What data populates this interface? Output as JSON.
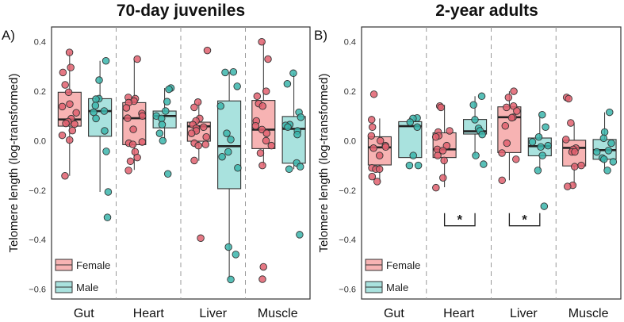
{
  "chart_data": [
    {
      "type": "box",
      "panel_label": "A)",
      "title": "70-day juveniles",
      "ylabel": "Telomere length (log-transformed)",
      "ylim": [
        -0.64,
        0.46
      ],
      "yticks": [
        "0.4",
        "0.2",
        "0.0",
        "−0.2",
        "−0.4",
        "−0.6"
      ],
      "ytick_values": [
        0.4,
        0.2,
        0.0,
        -0.2,
        -0.4,
        -0.6
      ],
      "categories": [
        "Gut",
        "Heart",
        "Liver",
        "Muscle"
      ],
      "legend": {
        "position": "bottom-left",
        "entries": [
          "Female",
          "Male"
        ]
      },
      "series": [
        {
          "name": "Female",
          "fill": "#f7b3b3",
          "point": "#e0606e",
          "boxes": [
            {
              "q1": 0.059,
              "median": 0.086,
              "q3": 0.196,
              "lower": -0.142,
              "upper": 0.357,
              "points": [
                0.357,
                0.296,
                0.276,
                0.226,
                0.196,
                0.148,
                0.138,
                0.113,
                0.089,
                0.077,
                0.07,
                0.067,
                0.041,
                0.022,
                0.003,
                -0.142
              ]
            },
            {
              "q1": -0.016,
              "median": 0.091,
              "q3": 0.154,
              "lower": -0.118,
              "upper": 0.33,
              "points": [
                0.33,
                0.175,
                0.17,
                0.16,
                0.154,
                0.133,
                0.11,
                0.1,
                0.091,
                0.046,
                -0.005,
                -0.01,
                -0.015,
                -0.045,
                -0.068,
                -0.083,
                -0.12
              ]
            },
            {
              "q1": -0.002,
              "median": 0.058,
              "q3": 0.075,
              "lower": -0.081,
              "upper": 0.156,
              "points": [
                0.365,
                0.156,
                0.135,
                0.09,
                0.08,
                0.065,
                0.055,
                0.05,
                0.04,
                0.03,
                0.015,
                -0.01,
                -0.015,
                -0.02,
                -0.08,
                -0.394
              ]
            },
            {
              "q1": -0.032,
              "median": 0.045,
              "q3": 0.163,
              "lower": -0.1,
              "upper": 0.4,
              "points": [
                0.4,
                0.33,
                0.2,
                0.18,
                0.15,
                0.14,
                0.08,
                0.06,
                0.045,
                0.03,
                0.0,
                -0.02,
                -0.05,
                -0.1,
                -0.51,
                -0.56
              ]
            }
          ]
        },
        {
          "name": "Male",
          "fill": "#a9e2de",
          "point": "#3bb5ac",
          "boxes": [
            {
              "q1": 0.018,
              "median": 0.12,
              "q3": 0.17,
              "lower": -0.207,
              "upper": 0.323,
              "points": [
                0.323,
                0.245,
                0.17,
                0.168,
                0.142,
                0.12,
                0.115,
                0.09,
                0.04,
                -0.043,
                -0.207,
                -0.31
              ]
            },
            {
              "q1": 0.052,
              "median": 0.1,
              "q3": 0.12,
              "lower": 0.0,
              "upper": 0.213,
              "points": [
                0.213,
                0.208,
                0.158,
                0.12,
                0.1,
                0.09,
                0.065,
                0.03,
                0.0,
                -0.134
              ]
            },
            {
              "q1": -0.194,
              "median": -0.022,
              "q3": 0.161,
              "lower": -0.561,
              "upper": 0.278,
              "points": [
                0.278,
                0.276,
                0.22,
                0.14,
                0.03,
                0.005,
                -0.045,
                -0.065,
                -0.11,
                -0.43,
                -0.46,
                -0.561
              ]
            },
            {
              "q1": -0.091,
              "median": 0.048,
              "q3": 0.098,
              "lower": -0.115,
              "upper": 0.273,
              "points": [
                0.273,
                0.23,
                0.115,
                0.095,
                0.065,
                0.062,
                0.055,
                0.04,
                0.025,
                -0.09,
                -0.105,
                -0.115,
                -0.38
              ]
            }
          ]
        }
      ],
      "significance": []
    },
    {
      "type": "box",
      "panel_label": "B)",
      "title": "2-year adults",
      "ylabel": "Telomere length (log-transformed)",
      "ylim": [
        -0.64,
        0.46
      ],
      "yticks": [
        "0.4",
        "0.2",
        "0.0",
        "−0.2",
        "−0.4",
        "−0.6"
      ],
      "ytick_values": [
        0.4,
        0.2,
        0.0,
        -0.2,
        -0.4,
        -0.6
      ],
      "categories": [
        "Gut",
        "Heart",
        "Liver",
        "Muscle"
      ],
      "legend": {
        "position": "bottom-left",
        "entries": [
          "Female",
          "Male"
        ]
      },
      "series": [
        {
          "name": "Female",
          "fill": "#f7b3b3",
          "point": "#e0606e",
          "boxes": [
            {
              "q1": -0.098,
              "median": -0.027,
              "q3": 0.016,
              "lower": -0.167,
              "upper": 0.09,
              "points": [
                0.188,
                0.085,
                0.055,
                0.02,
                0.0,
                -0.02,
                -0.025,
                -0.03,
                -0.06,
                -0.11,
                -0.115,
                -0.115,
                -0.145,
                -0.165
              ]
            },
            {
              "q1": -0.068,
              "median": -0.035,
              "q3": 0.032,
              "lower": -0.188,
              "upper": 0.145,
              "points": [
                0.14,
                0.135,
                0.04,
                0.035,
                0.02,
                0.015,
                -0.02,
                -0.035,
                -0.04,
                -0.06,
                -0.08,
                -0.15,
                -0.19
              ]
            },
            {
              "q1": -0.048,
              "median": 0.095,
              "q3": 0.137,
              "lower": -0.16,
              "upper": 0.2,
              "points": [
                0.2,
                0.175,
                0.14,
                0.135,
                0.12,
                0.095,
                0.093,
                0.06,
                -0.01,
                -0.05,
                -0.075,
                -0.16
              ]
            },
            {
              "q1": -0.102,
              "median": -0.029,
              "q3": 0.002,
              "lower": -0.183,
              "upper": 0.073,
              "points": [
                0.175,
                0.17,
                0.072,
                0.005,
                -0.03,
                -0.035,
                -0.045,
                -0.045,
                -0.1,
                -0.105,
                -0.18,
                -0.185
              ]
            }
          ]
        },
        {
          "name": "Male",
          "fill": "#a9e2de",
          "point": "#3bb5ac",
          "boxes": [
            {
              "q1": -0.068,
              "median": 0.059,
              "q3": 0.077,
              "lower": -0.07,
              "upper": 0.095,
              "points": [
                0.092,
                0.09,
                0.075,
                0.055,
                -0.06,
                -0.1,
                -0.1
              ]
            },
            {
              "q1": 0.027,
              "median": 0.038,
              "q3": 0.086,
              "lower": -0.06,
              "upper": 0.18,
              "points": [
                0.18,
                0.145,
                0.085,
                0.05,
                0.04,
                0.025,
                -0.06,
                -0.095
              ]
            },
            {
              "q1": -0.061,
              "median": -0.022,
              "q3": 0.011,
              "lower": -0.12,
              "upper": 0.105,
              "points": [
                0.105,
                0.055,
                0.015,
                -0.005,
                -0.02,
                -0.025,
                -0.06,
                -0.12,
                -0.265
              ]
            },
            {
              "q1": -0.075,
              "median": -0.038,
              "q3": 0.005,
              "lower": -0.12,
              "upper": 0.115,
              "points": [
                0.115,
                0.035,
                0.01,
                -0.01,
                -0.04,
                -0.045,
                -0.07,
                -0.075,
                -0.085,
                -0.12
              ]
            }
          ]
        }
      ],
      "significance": [
        {
          "category": "Heart",
          "label": "*",
          "y": -0.344
        },
        {
          "category": "Liver",
          "label": "*",
          "y": -0.344
        }
      ]
    }
  ]
}
